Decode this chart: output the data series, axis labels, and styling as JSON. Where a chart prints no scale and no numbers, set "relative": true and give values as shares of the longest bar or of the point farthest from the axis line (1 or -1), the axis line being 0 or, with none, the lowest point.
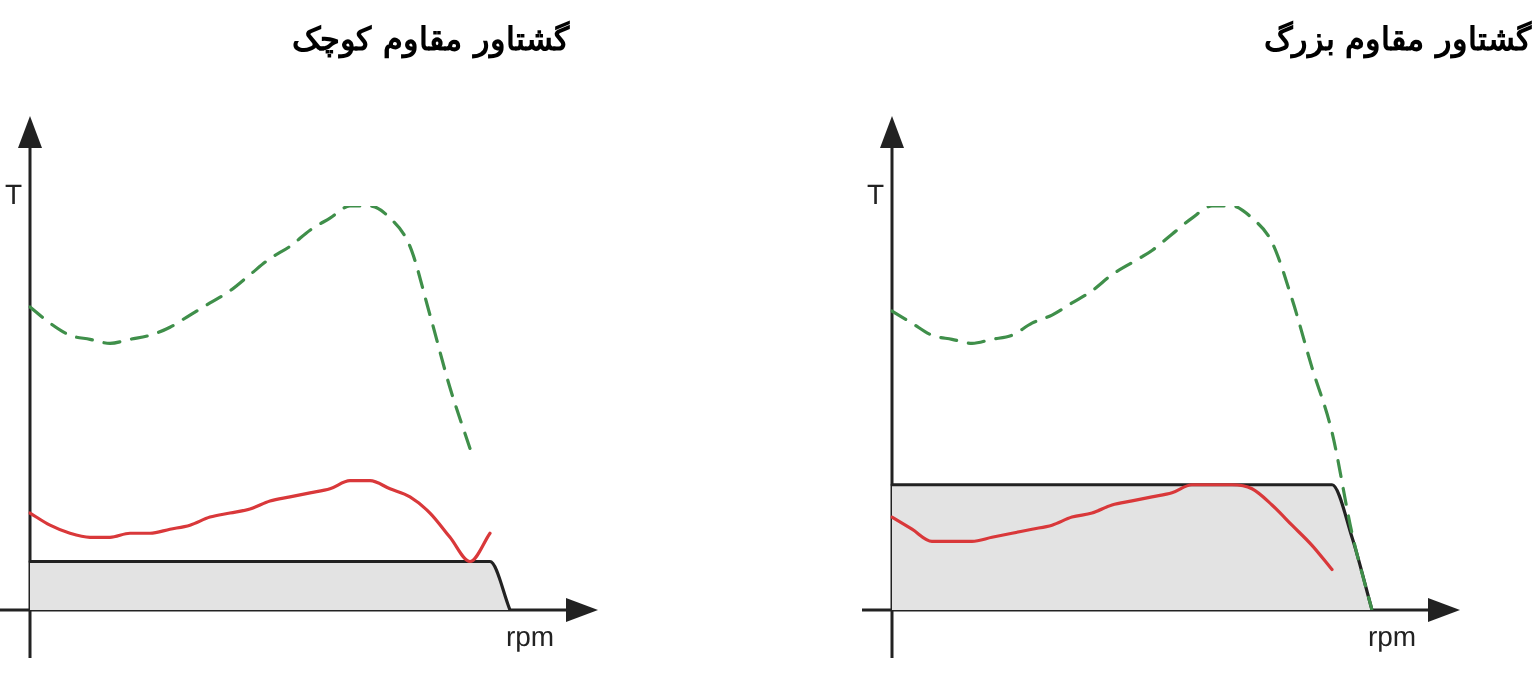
{
  "chart_data": [
    {
      "type": "line",
      "title": "گشتاور مقاوم کوچک",
      "xlabel": "rpm",
      "ylabel": "T",
      "relative": true,
      "grid": false,
      "legend": false,
      "marker": "none",
      "tick_labels": false,
      "categories": [
        null,
        null,
        null,
        null,
        null,
        null,
        null,
        null,
        null,
        null,
        null,
        null,
        null,
        null,
        null,
        null,
        null,
        null,
        null,
        null,
        null,
        null,
        null,
        null,
        null
      ],
      "series": [
        {
          "type": "area",
          "color": "#e3e3e3",
          "values": [
            0.12,
            0.12,
            0.12,
            0.12,
            0.12,
            0.12,
            0.12,
            0.12,
            0.12,
            0.12,
            0.12,
            0.12,
            0.12,
            0.12,
            0.12,
            0.12,
            0.12,
            0.12,
            0.12,
            0.12,
            0.12,
            0.12,
            0.12,
            0.12,
            0
          ]
        },
        {
          "type": "line",
          "color": "#d9383a",
          "line_style": "solid",
          "values": [
            0.24,
            0.21,
            0.19,
            0.18,
            0.18,
            0.19,
            0.19,
            0.2,
            0.21,
            0.23,
            0.24,
            0.25,
            0.27,
            0.28,
            0.29,
            0.3,
            0.32,
            0.32,
            0.3,
            0.28,
            0.24,
            0.18,
            0.12,
            0.19,
            null
          ]
        },
        {
          "type": "line",
          "color": "#3f8f4a",
          "line_style": "dashed",
          "values": [
            0.75,
            0.71,
            0.68,
            0.67,
            0.66,
            0.67,
            0.68,
            0.7,
            0.73,
            0.76,
            0.79,
            0.83,
            0.87,
            0.9,
            0.94,
            0.97,
            1.0,
            1.0,
            0.97,
            0.9,
            0.73,
            0.55,
            0.4,
            null,
            null
          ]
        }
      ]
    },
    {
      "type": "line",
      "title": "گشتاور مقاوم بزرگ",
      "xlabel": "rpm",
      "ylabel": "T",
      "relative": true,
      "grid": false,
      "legend": false,
      "marker": "none",
      "tick_labels": false,
      "categories": [
        null,
        null,
        null,
        null,
        null,
        null,
        null,
        null,
        null,
        null,
        null,
        null,
        null,
        null,
        null,
        null,
        null,
        null,
        null,
        null,
        null,
        null,
        null,
        null,
        null
      ],
      "series": [
        {
          "type": "area",
          "color": "#e3e3e3",
          "values": [
            0.31,
            0.31,
            0.31,
            0.31,
            0.31,
            0.31,
            0.31,
            0.31,
            0.31,
            0.31,
            0.31,
            0.31,
            0.31,
            0.31,
            0.31,
            0.31,
            0.31,
            0.31,
            0.31,
            0.31,
            0.31,
            0.31,
            0.31,
            0.18,
            0
          ]
        },
        {
          "type": "line",
          "color": "#d9383a",
          "line_style": "solid",
          "values": [
            0.23,
            0.2,
            0.17,
            0.17,
            0.17,
            0.18,
            0.19,
            0.2,
            0.21,
            0.23,
            0.24,
            0.26,
            0.27,
            0.28,
            0.29,
            0.31,
            0.31,
            0.31,
            0.3,
            0.26,
            0.21,
            0.16,
            0.1,
            null,
            null
          ]
        },
        {
          "type": "line",
          "color": "#3f8f4a",
          "line_style": "dashed",
          "values": [
            0.74,
            0.71,
            0.68,
            0.67,
            0.66,
            0.67,
            0.68,
            0.71,
            0.73,
            0.76,
            0.79,
            0.83,
            0.86,
            0.89,
            0.93,
            0.97,
            1.0,
            1.0,
            0.97,
            0.91,
            0.77,
            0.6,
            0.44,
            0.19,
            0
          ]
        }
      ]
    }
  ]
}
